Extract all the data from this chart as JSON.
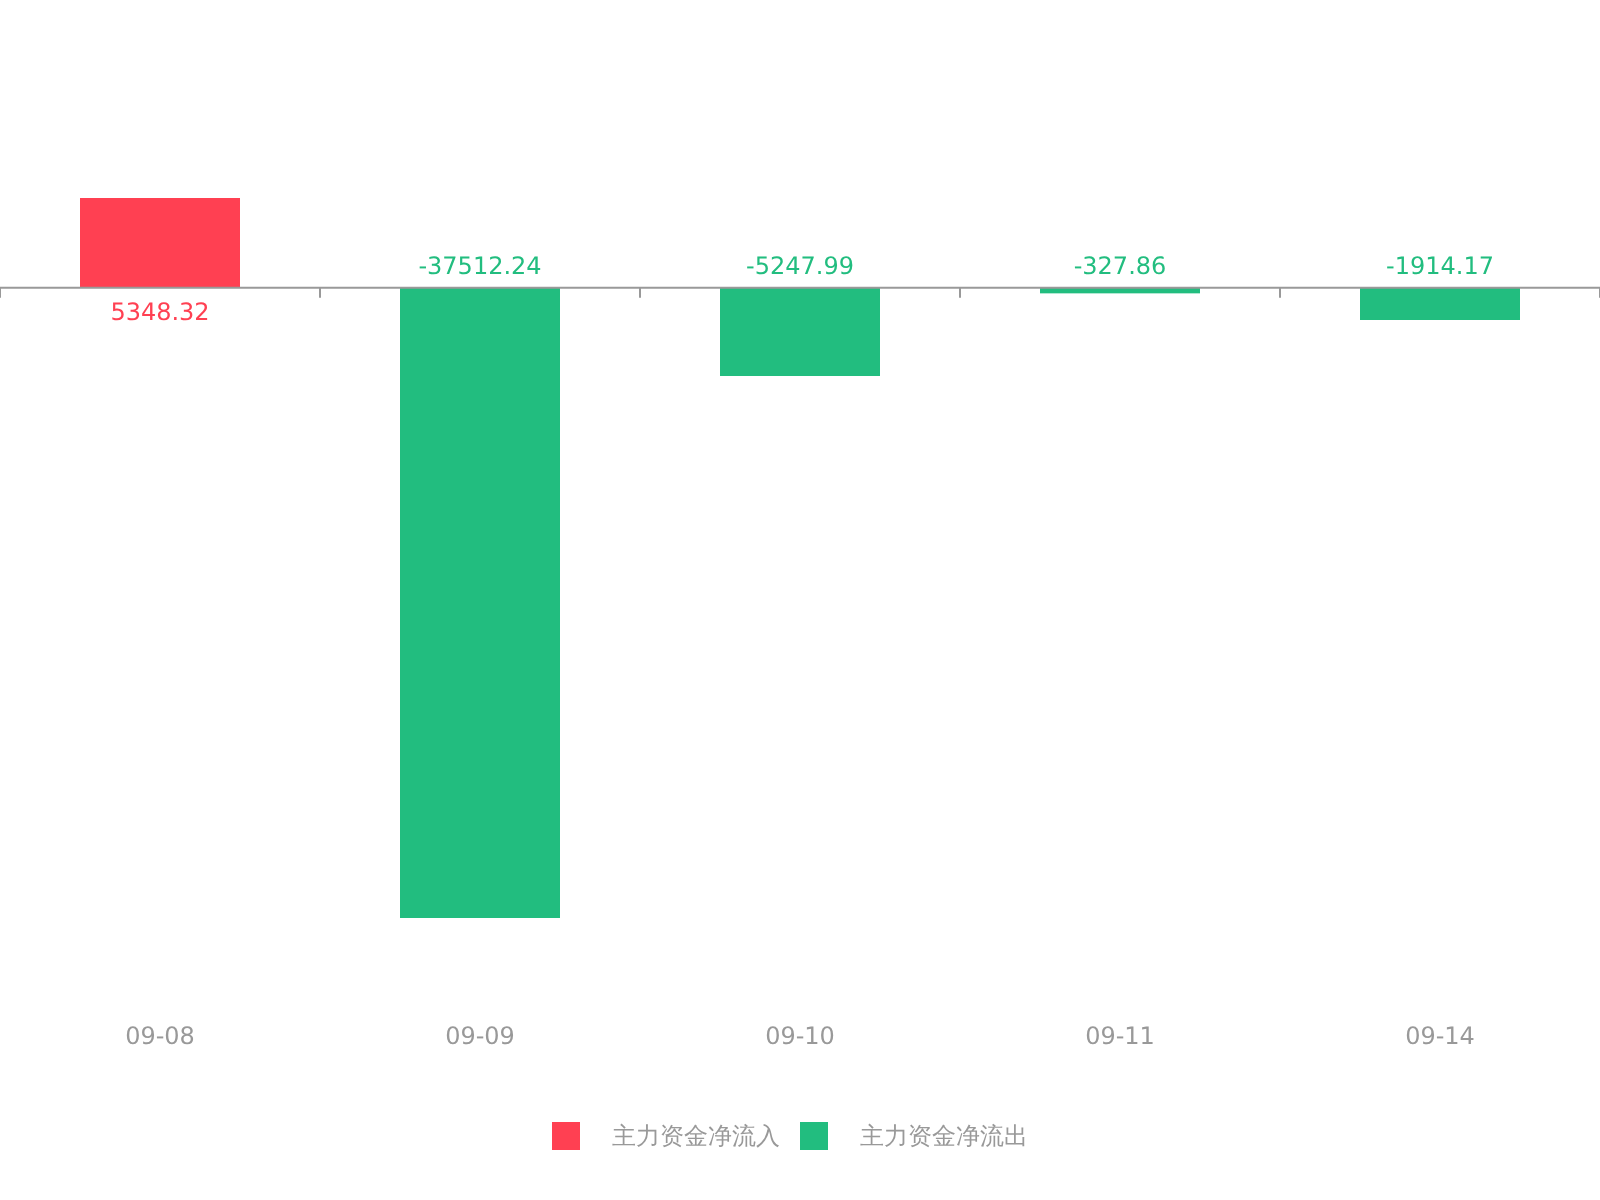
{
  "chart_data": {
    "type": "bar",
    "categories": [
      "09-08",
      "09-09",
      "09-10",
      "09-11",
      "09-14"
    ],
    "series": [
      {
        "name": "主力资金净流入",
        "color": "#ff4052",
        "values": [
          5348.32,
          null,
          null,
          null,
          null
        ]
      },
      {
        "name": "主力资金净流出",
        "color": "#22bd7f",
        "values": [
          null,
          -37512.24,
          -5247.99,
          -327.86,
          -1914.17
        ]
      }
    ],
    "data_labels": true,
    "legend": "bottom"
  }
}
